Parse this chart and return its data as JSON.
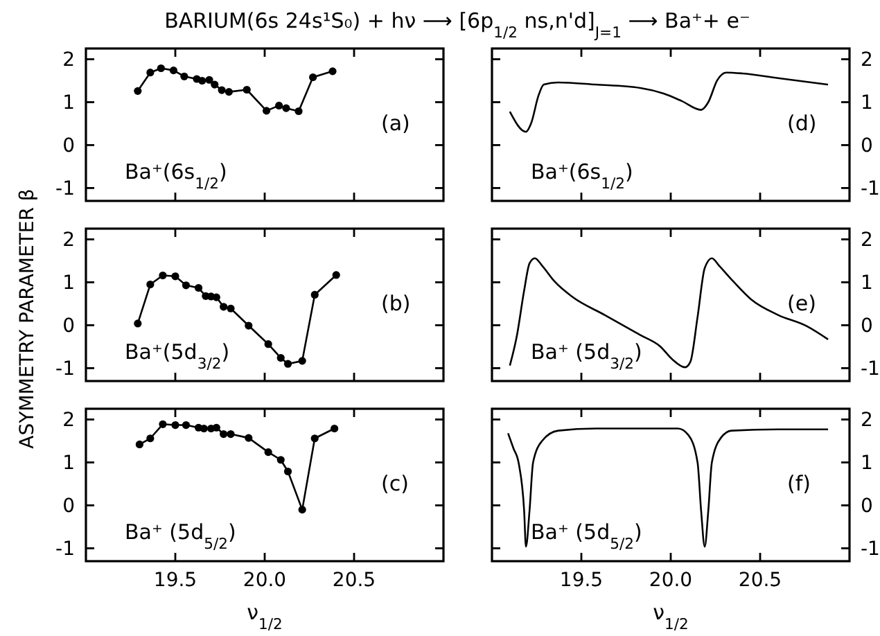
{
  "chart_data": [
    {
      "type": "line",
      "title": "BARIUM(6s 24s¹S₀)  +  hν  ⟶  [6p$_{1/2}$ ns,n'd]$_{J=1}$  ⟶  Ba⁺+ e⁻",
      "ylabel": "ASYMMETRY PARAMETER β",
      "annotations": [
        "Ba⁺(6s$_{1/2}$)",
        "(a)"
      ],
      "marker": "circle",
      "line_style": "solid",
      "grid": false,
      "tick_labels": "y",
      "xlim": [
        19.0,
        21.0
      ],
      "xticks": [
        {
          "value": 19.5,
          "label": null
        },
        {
          "value": 20.0,
          "label": null
        },
        {
          "value": 20.5,
          "label": null
        }
      ],
      "ylim": [
        -1.3,
        2.25
      ],
      "yticks": [
        -1,
        0,
        1,
        2
      ],
      "series": [
        {
          "color": "#000000",
          "x": [
            19.29,
            19.36,
            19.42,
            19.49,
            19.55,
            19.62,
            19.65,
            19.69,
            19.72,
            19.76,
            19.8,
            19.9,
            20.01,
            20.08,
            20.12,
            20.19,
            20.27,
            20.38
          ],
          "values": [
            1.26,
            1.69,
            1.79,
            1.74,
            1.6,
            1.54,
            1.5,
            1.52,
            1.41,
            1.28,
            1.24,
            1.29,
            0.8,
            0.92,
            0.86,
            0.79,
            1.58,
            1.72
          ]
        }
      ]
    },
    {
      "type": "line",
      "annotations": [
        "Ba⁺(5d$_{3/2}$)",
        "(b)"
      ],
      "marker": "circle",
      "line_style": "solid",
      "grid": false,
      "tick_labels": "y",
      "xlim": [
        19.0,
        21.0
      ],
      "xticks": [
        {
          "value": 19.5,
          "label": null
        },
        {
          "value": 20.0,
          "label": null
        },
        {
          "value": 20.5,
          "label": null
        }
      ],
      "ylim": [
        -1.3,
        2.25
      ],
      "yticks": [
        -1,
        0,
        1,
        2
      ],
      "series": [
        {
          "color": "#000000",
          "x": [
            19.29,
            19.36,
            19.43,
            19.5,
            19.56,
            19.63,
            19.67,
            19.7,
            19.73,
            19.77,
            19.81,
            19.91,
            20.02,
            20.09,
            20.13,
            20.21,
            20.28,
            20.4
          ],
          "values": [
            0.04,
            0.95,
            1.16,
            1.14,
            0.93,
            0.87,
            0.68,
            0.67,
            0.65,
            0.43,
            0.39,
            -0.01,
            -0.44,
            -0.76,
            -0.9,
            -0.83,
            0.71,
            1.17
          ]
        }
      ]
    },
    {
      "type": "line",
      "xlabel": "ν$_{1/2}$",
      "annotations": [
        "Ba⁺ (5d$_{5/2}$)",
        "(c)"
      ],
      "marker": "circle",
      "line_style": "solid",
      "grid": false,
      "xlim": [
        19.0,
        21.0
      ],
      "xticks": [
        {
          "value": 19.5,
          "label": "19.5"
        },
        {
          "value": 20.0,
          "label": "20.0"
        },
        {
          "value": 20.5,
          "label": "20.5"
        }
      ],
      "ylim": [
        -1.3,
        2.25
      ],
      "yticks": [
        -1,
        0,
        1,
        2
      ],
      "series": [
        {
          "color": "#000000",
          "x": [
            19.3,
            19.36,
            19.43,
            19.5,
            19.56,
            19.63,
            19.66,
            19.7,
            19.73,
            19.77,
            19.81,
            19.91,
            20.02,
            20.09,
            20.13,
            20.21,
            20.28,
            20.39
          ],
          "values": [
            1.42,
            1.56,
            1.89,
            1.87,
            1.87,
            1.81,
            1.79,
            1.79,
            1.81,
            1.66,
            1.66,
            1.57,
            1.24,
            1.06,
            0.79,
            -0.1,
            1.56,
            1.79
          ]
        }
      ]
    },
    {
      "type": "line",
      "annotations": [
        "Ba⁺(6s$_{1/2}$)",
        "(d)"
      ],
      "marker": "none",
      "line_style": "solid",
      "grid": false,
      "tick_labels": "y",
      "xlim": [
        19.0,
        21.0
      ],
      "xticks": [
        {
          "value": 19.5,
          "label": null
        },
        {
          "value": 20.0,
          "label": null
        },
        {
          "value": 20.5,
          "label": null
        }
      ],
      "ylim": [
        -1.3,
        2.25
      ],
      "yticks": [
        -1,
        0,
        1,
        2
      ],
      "series": [
        {
          "color": "#000000",
          "x": [
            19.1,
            19.19,
            19.22,
            19.26,
            19.29,
            19.37,
            19.58,
            19.83,
            19.96,
            20.06,
            20.17,
            20.21,
            20.26,
            20.31,
            20.4,
            20.6,
            20.88
          ],
          "values": [
            0.78,
            0.31,
            0.52,
            1.15,
            1.41,
            1.46,
            1.41,
            1.33,
            1.2,
            1.03,
            0.82,
            1.0,
            1.51,
            1.69,
            1.67,
            1.56,
            1.41
          ]
        }
      ]
    },
    {
      "type": "line",
      "annotations": [
        "Ba⁺ (5d$_{3/2}$)",
        "(e)"
      ],
      "marker": "none",
      "line_style": "solid",
      "grid": false,
      "tick_labels": "y",
      "xlim": [
        19.0,
        21.0
      ],
      "xticks": [
        {
          "value": 19.5,
          "label": null
        },
        {
          "value": 20.0,
          "label": null
        },
        {
          "value": 20.5,
          "label": null
        }
      ],
      "ylim": [
        -1.3,
        2.25
      ],
      "yticks": [
        -1,
        0,
        1,
        2
      ],
      "series": [
        {
          "color": "#000000",
          "x": [
            19.1,
            19.14,
            19.18,
            19.21,
            19.24,
            19.28,
            19.35,
            19.45,
            19.63,
            19.83,
            19.94,
            20.01,
            20.08,
            20.11,
            20.15,
            20.19,
            20.23,
            20.27,
            20.35,
            20.45,
            20.6,
            20.76,
            20.88
          ],
          "values": [
            -0.94,
            -0.23,
            0.81,
            1.44,
            1.56,
            1.39,
            1.02,
            0.66,
            0.24,
            -0.23,
            -0.49,
            -0.8,
            -0.98,
            -0.85,
            0.19,
            1.33,
            1.56,
            1.39,
            1.02,
            0.6,
            0.24,
            -0.02,
            -0.33
          ]
        }
      ]
    },
    {
      "type": "line",
      "xlabel": "ν$_{1/2}$",
      "annotations": [
        "Ba⁺ (5d$_{5/2}$)",
        "(f)"
      ],
      "marker": "none",
      "line_style": "solid",
      "grid": false,
      "xlim": [
        19.0,
        21.0
      ],
      "xticks": [
        {
          "value": 19.5,
          "label": "19.5"
        },
        {
          "value": 20.0,
          "label": "20.0"
        },
        {
          "value": 20.5,
          "label": "20.5"
        }
      ],
      "ylim": [
        -1.3,
        2.25
      ],
      "yticks": [
        -1,
        0,
        1,
        2
      ],
      "series": [
        {
          "color": "#000000",
          "x": [
            19.09,
            19.12,
            19.15,
            19.18,
            19.19,
            19.21,
            19.23,
            19.28,
            19.37,
            19.58,
            20.04,
            20.1,
            20.15,
            20.17,
            20.19,
            20.21,
            20.23,
            20.28,
            20.34,
            20.6,
            20.88
          ],
          "values": [
            1.68,
            1.33,
            0.97,
            -0.13,
            -0.96,
            -0.13,
            1.0,
            1.5,
            1.74,
            1.79,
            1.79,
            1.63,
            1.0,
            -0.13,
            -0.96,
            -0.13,
            1.0,
            1.57,
            1.74,
            1.77,
            1.77
          ]
        }
      ]
    }
  ]
}
